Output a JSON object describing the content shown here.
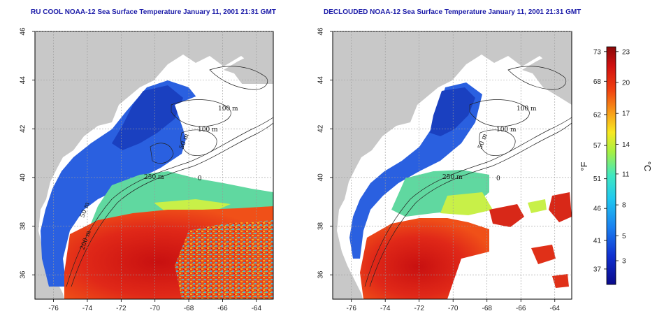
{
  "panels": [
    {
      "title": "RU COOL NOAA-12 Sea Surface Temperature January 11, 2001 21:31 GMT",
      "contour_labels": [
        "100 m",
        "100 m",
        "50 m",
        "250 m",
        "50 m",
        "200 m",
        "0"
      ]
    },
    {
      "title": "DECLOUDED NOAA-12 Sea Surface Temperature January 11, 2001 21:31 GMT",
      "contour_labels": [
        "100 m",
        "100 m",
        "50 m",
        "250 m",
        "0"
      ]
    }
  ],
  "axes": {
    "x_ticks": [
      "-76",
      "-74",
      "-72",
      "-70",
      "-68",
      "-66",
      "-64"
    ],
    "y_ticks": [
      "36",
      "38",
      "40",
      "42",
      "44",
      "46"
    ],
    "xlim": [
      -77.1,
      -63.0
    ],
    "ylim": [
      35.0,
      46.0
    ]
  },
  "colorbar": {
    "fahrenheit_ticks": [
      "73",
      "68",
      "62",
      "57",
      "51",
      "46",
      "41",
      "37"
    ],
    "celsius_ticks": [
      "23",
      "20",
      "17",
      "14",
      "11",
      "8",
      "5",
      "3"
    ],
    "fahrenheit_unit": "°F",
    "celsius_unit": "°C",
    "range_celsius": [
      0,
      24
    ]
  },
  "colors": {
    "land": "#c8c8c8",
    "cloud": "#ffffff",
    "title": "#1a1aa8"
  }
}
